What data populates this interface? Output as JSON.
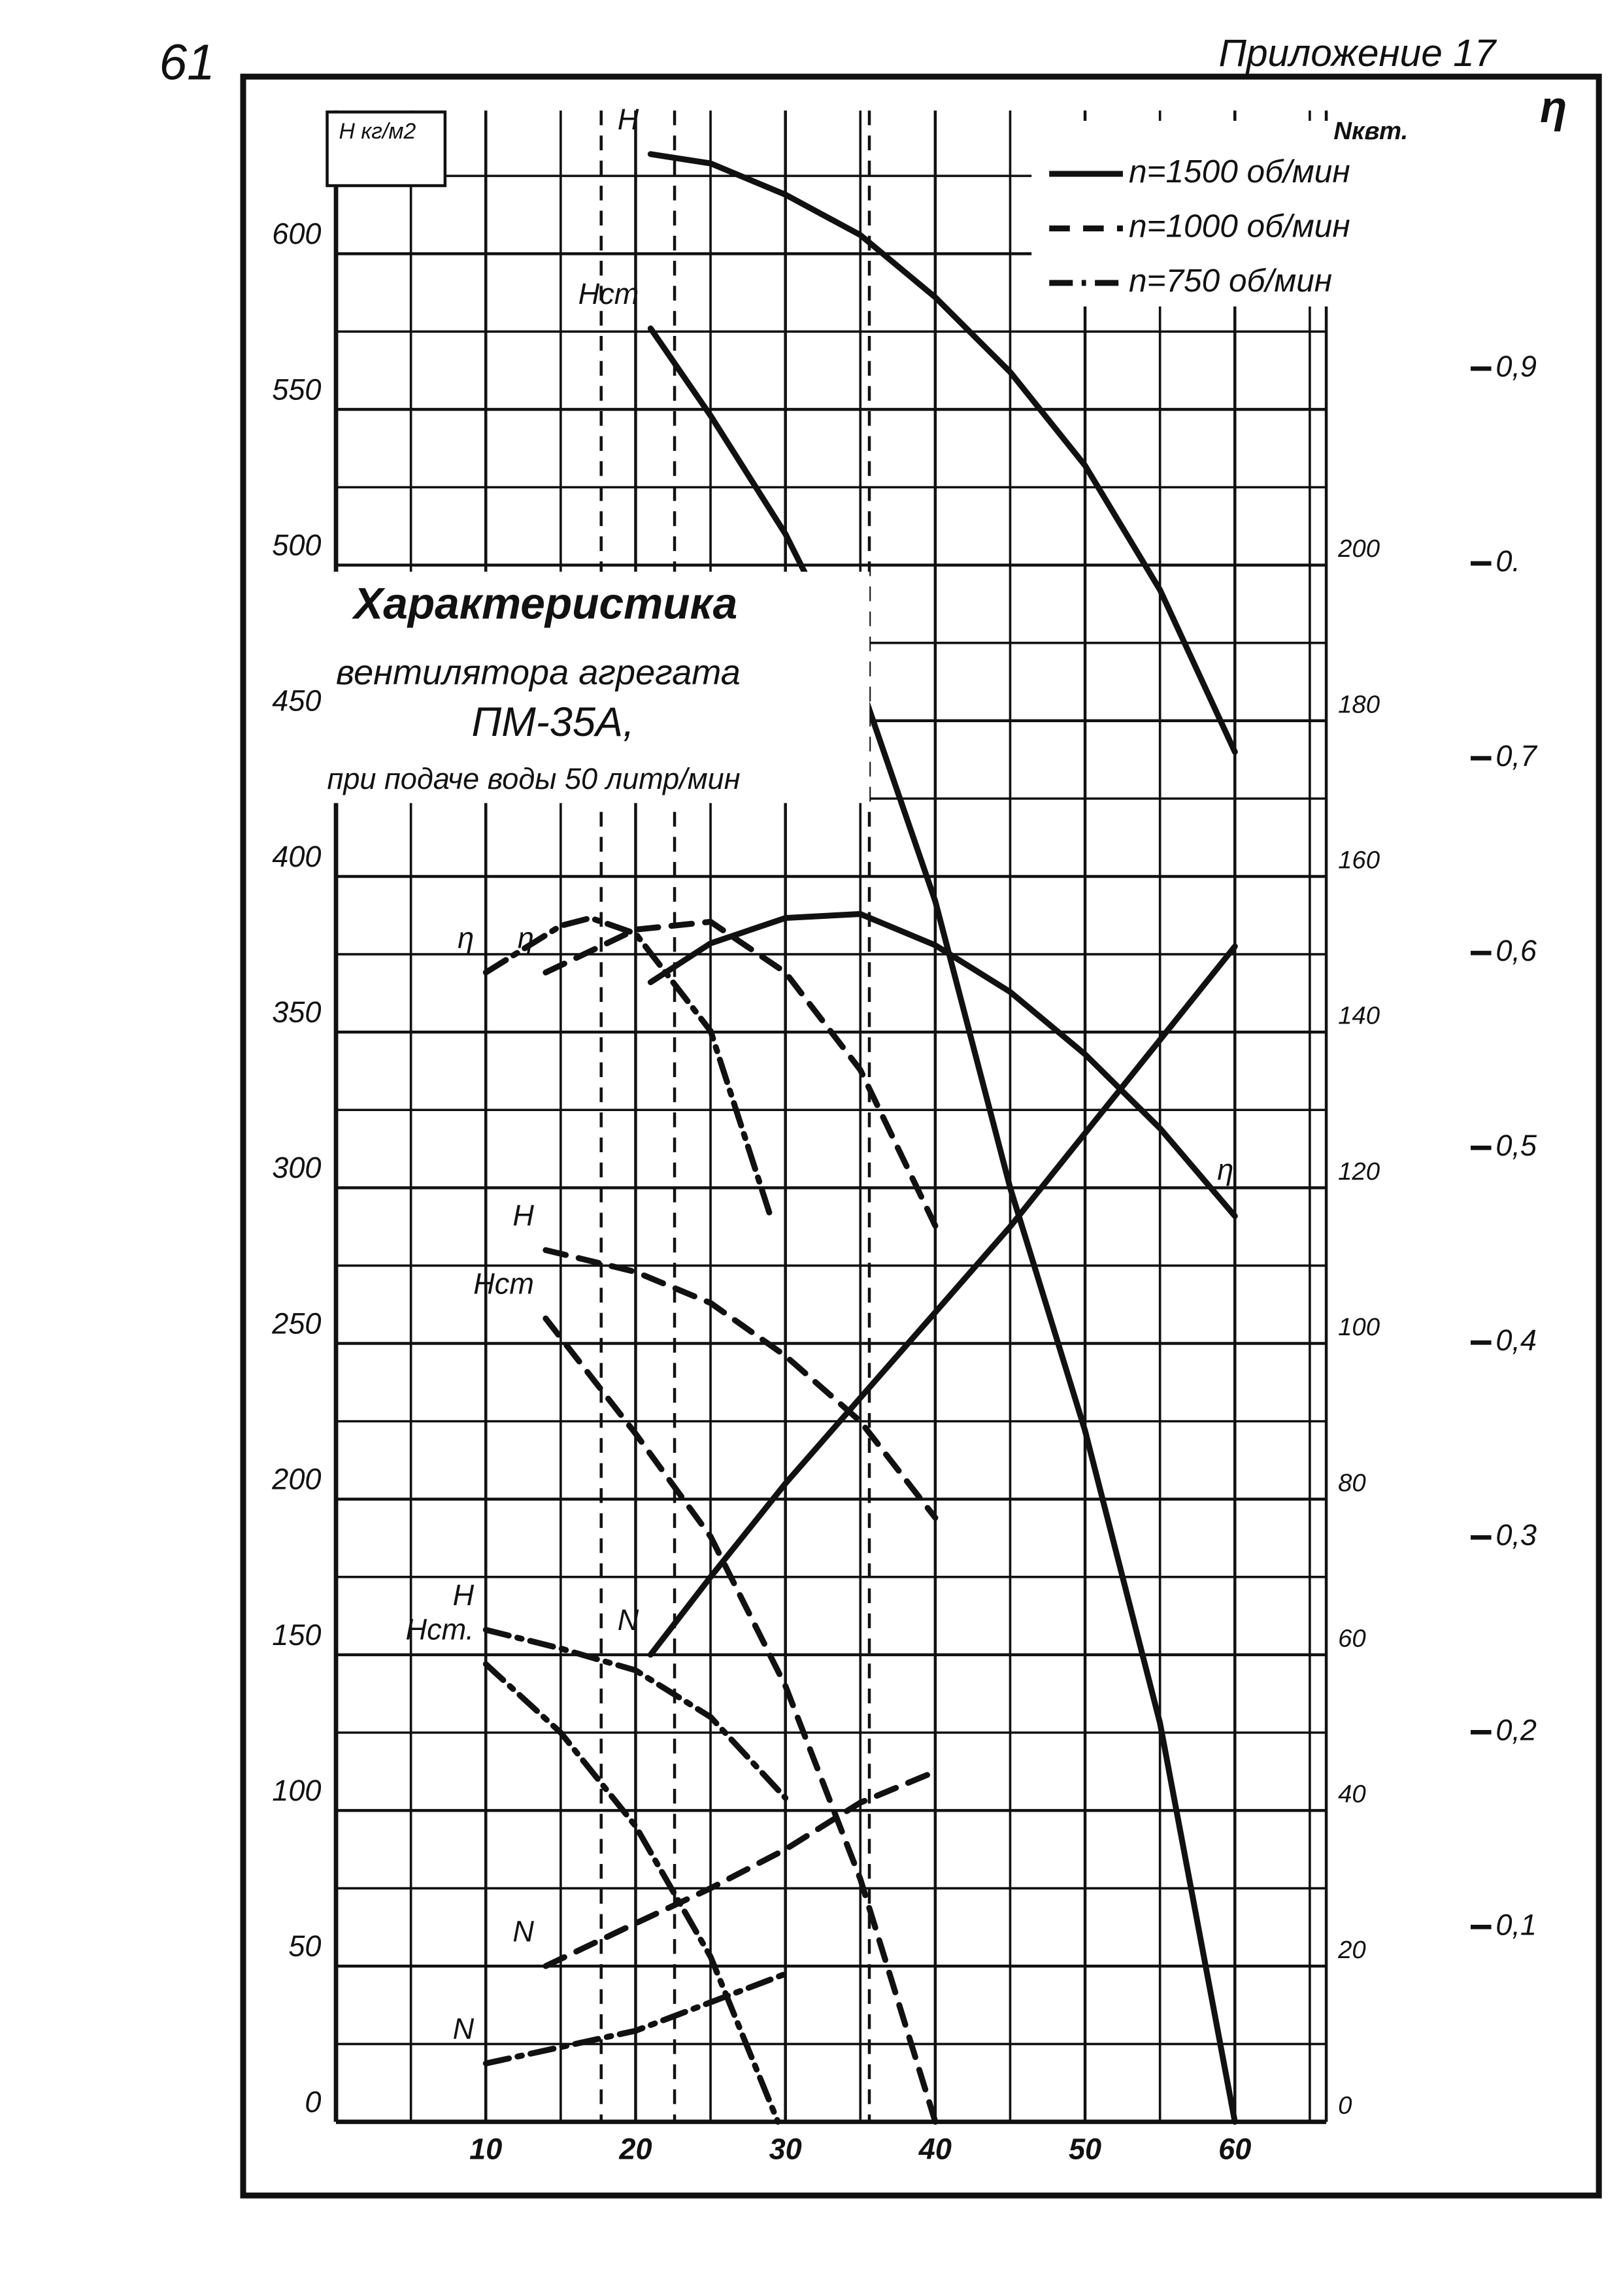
{
  "page": {
    "number": "61",
    "appendix": "Приложение 17"
  },
  "chart_data": {
    "type": "line",
    "title": [
      "Характеристика",
      "вентилятора агрегата",
      "ПМ-35А,",
      "при подаче воды 50 литр/мин"
    ],
    "xlim": [
      0,
      66.1
    ],
    "xticks": [
      10,
      20,
      30,
      40,
      50,
      60
    ],
    "ylabel": "H кг/м2",
    "ylim": [
      0,
      646
    ],
    "yticks": [
      0,
      50,
      100,
      150,
      200,
      250,
      300,
      350,
      400,
      450,
      500,
      550,
      600
    ],
    "y2label": "Nквт.",
    "y2lim": [
      0,
      258.4
    ],
    "y2ticks": [
      0,
      20,
      40,
      60,
      80,
      100,
      120,
      140,
      160,
      180,
      200
    ],
    "y3label": "η",
    "y3lim": [
      0,
      1.0325
    ],
    "y3ticks": [
      {
        "value": 0.1,
        "label": "0,1"
      },
      {
        "value": 0.2,
        "label": "0,2"
      },
      {
        "value": 0.3,
        "label": "0,3"
      },
      {
        "value": 0.4,
        "label": "0,4"
      },
      {
        "value": 0.5,
        "label": "0,5"
      },
      {
        "value": 0.6,
        "label": "0,6"
      },
      {
        "value": 0.7,
        "label": "0,7"
      },
      {
        "value": 0.8,
        "label": "0."
      },
      {
        "value": 0.9,
        "label": "0,9"
      }
    ],
    "grid": true,
    "vlines": [
      17.7,
      22.6,
      35.6
    ],
    "legend": [
      {
        "name": "n=1500 об/мин",
        "dash": "solid"
      },
      {
        "name": "n=1000 об/мин",
        "dash": "dash"
      },
      {
        "name": "n=750 об/мин",
        "dash": "dashdot"
      }
    ],
    "series": [
      {
        "name": "H",
        "group": 0,
        "axis": "y",
        "color": "#111",
        "x": [
          21,
          25,
          30,
          35,
          40,
          45,
          50,
          55,
          60
        ],
        "values": [
          632,
          629,
          619,
          606,
          586,
          562,
          532,
          492,
          440
        ]
      },
      {
        "name": "Hст",
        "group": 0,
        "axis": "y",
        "color": "#111",
        "x": [
          21,
          25,
          30,
          35,
          40,
          45,
          50,
          55,
          60
        ],
        "values": [
          576,
          548,
          510,
          462,
          392,
          300,
          222,
          128,
          0
        ]
      },
      {
        "name": "η",
        "group": 0,
        "axis": "y3",
        "label_at": "end",
        "color": "#111",
        "x": [
          21,
          25,
          30,
          35,
          40,
          45,
          50,
          55,
          60
        ],
        "values": [
          0.585,
          0.605,
          0.618,
          0.62,
          0.604,
          0.58,
          0.548,
          0.51,
          0.465
        ]
      },
      {
        "name": "N",
        "group": 0,
        "axis": "y2",
        "color": "#111",
        "x": [
          21,
          25,
          30,
          35,
          40,
          45,
          50,
          55,
          60
        ],
        "values": [
          60,
          70,
          82,
          93,
          104,
          115,
          127,
          139,
          151
        ]
      },
      {
        "name": "H",
        "group": 1,
        "axis": "y",
        "color": "#111",
        "x": [
          14,
          20,
          25,
          30,
          35,
          40
        ],
        "values": [
          280,
          273,
          263,
          246,
          225,
          194
        ]
      },
      {
        "name": "Hст",
        "group": 1,
        "axis": "y",
        "color": "#111",
        "x": [
          14,
          20,
          25,
          30,
          35,
          40
        ],
        "values": [
          258,
          221,
          188,
          140,
          78,
          0
        ]
      },
      {
        "name": "η",
        "group": 1,
        "axis": "y3",
        "color": "#111",
        "x": [
          14,
          20,
          25,
          30,
          35,
          40
        ],
        "values": [
          0.59,
          0.612,
          0.616,
          0.59,
          0.54,
          0.46
        ]
      },
      {
        "name": "N",
        "group": 1,
        "axis": "y2",
        "color": "#111",
        "x": [
          14,
          20,
          25,
          30,
          35,
          40
        ],
        "values": [
          20,
          25.5,
          30,
          35,
          41,
          45
        ]
      },
      {
        "name": "H",
        "group": 2,
        "axis": "y",
        "color": "#111",
        "x": [
          10,
          15,
          20,
          25,
          30
        ],
        "values": [
          158,
          152,
          145,
          130,
          104
        ]
      },
      {
        "name": "Hст.",
        "group": 2,
        "axis": "y",
        "color": "#111",
        "x": [
          10,
          15,
          20,
          25,
          29.5
        ],
        "values": [
          147,
          125,
          95,
          53,
          0
        ]
      },
      {
        "name": "η",
        "group": 2,
        "axis": "y3",
        "color": "#111",
        "x": [
          10,
          15,
          17,
          20,
          25,
          29
        ],
        "values": [
          0.59,
          0.614,
          0.618,
          0.61,
          0.56,
          0.465
        ]
      },
      {
        "name": "N",
        "group": 2,
        "axis": "y2",
        "color": "#111",
        "x": [
          10,
          20,
          30
        ],
        "values": [
          7.5,
          11.7,
          19
        ]
      }
    ]
  }
}
